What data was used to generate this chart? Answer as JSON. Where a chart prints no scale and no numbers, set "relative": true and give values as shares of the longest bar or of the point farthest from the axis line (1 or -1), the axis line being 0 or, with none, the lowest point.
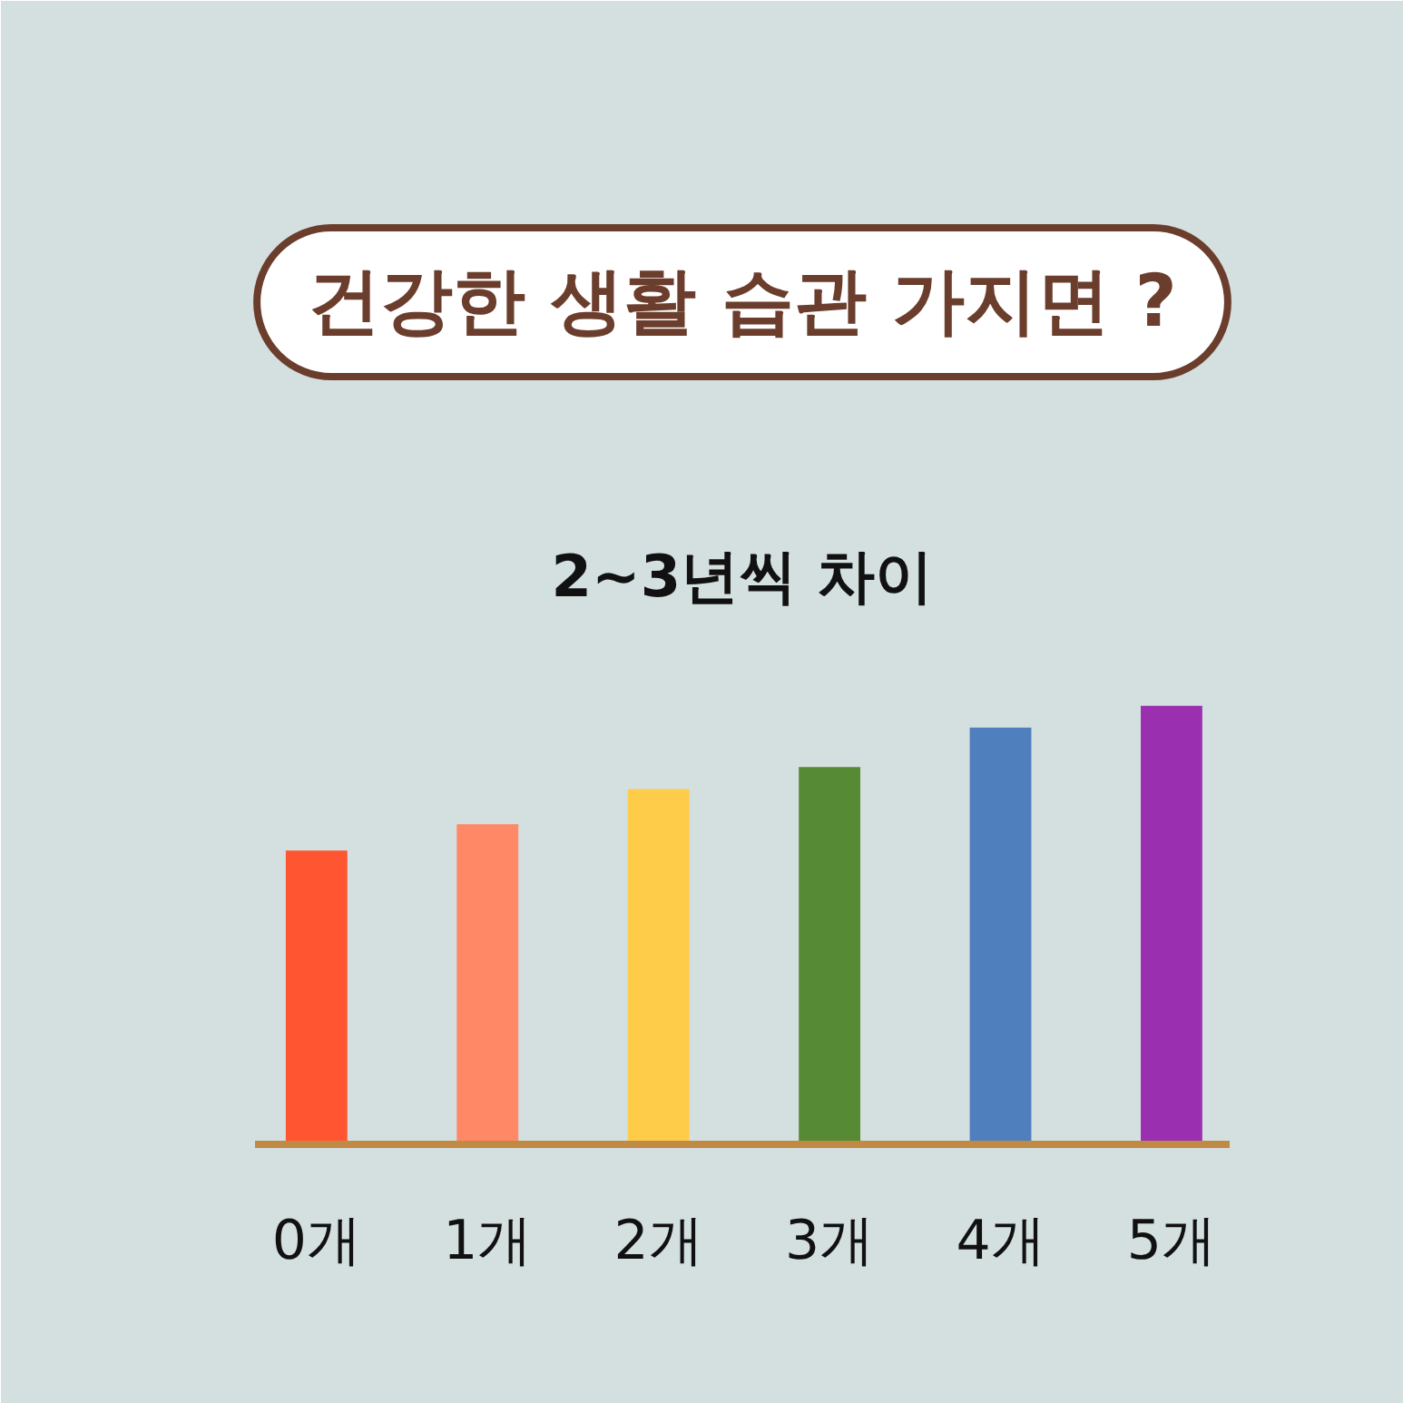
{
  "chart_data": {
    "type": "bar",
    "title": "건강한 생활 습관 가지면 ?",
    "subtitle": "2~3년씩 차이",
    "categories": [
      "0개",
      "1개",
      "2개",
      "3개",
      "4개",
      "5개"
    ],
    "values": [
      0.67,
      0.73,
      0.81,
      0.86,
      0.95,
      1
    ],
    "colors": [
      "#ff5530",
      "#ff8866",
      "#ffcc4a",
      "#578a34",
      "#4f7fbd",
      "#9a30b0"
    ],
    "relative": true
  }
}
